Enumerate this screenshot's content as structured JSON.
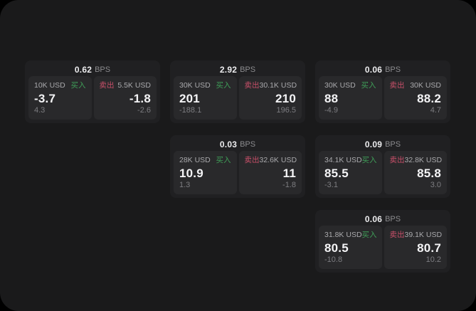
{
  "labels": {
    "bps_suffix": "BPS",
    "buy": "买入",
    "sell": "卖出"
  },
  "colors": {
    "page_bg": "#000000",
    "panel_bg": "#1a1a1b",
    "card_bg": "#202022",
    "tile_bg": "#29292b",
    "buy_green": "#3f9e58",
    "sell_red": "#c9506a"
  },
  "cards": [
    {
      "row": 1,
      "col": 1,
      "bps": "0.62",
      "buy": {
        "notional": "10K USD",
        "value": "-3.7",
        "sub": "4.3"
      },
      "sell": {
        "notional": "5.5K USD",
        "value": "-1.8",
        "sub": "-2.6"
      }
    },
    {
      "row": 1,
      "col": 2,
      "bps": "2.92",
      "buy": {
        "notional": "30K USD",
        "value": "201",
        "sub": "-188.1"
      },
      "sell": {
        "notional": "30.1K USD",
        "value": "210",
        "sub": "196.5"
      }
    },
    {
      "row": 1,
      "col": 3,
      "bps": "0.06",
      "buy": {
        "notional": "30K USD",
        "value": "88",
        "sub": "-4.9"
      },
      "sell": {
        "notional": "30K USD",
        "value": "88.2",
        "sub": "4.7"
      }
    },
    {
      "row": 2,
      "col": 2,
      "bps": "0.03",
      "buy": {
        "notional": "28K USD",
        "value": "10.9",
        "sub": "1.3"
      },
      "sell": {
        "notional": "32.6K USD",
        "value": "11",
        "sub": "-1.8"
      }
    },
    {
      "row": 2,
      "col": 3,
      "bps": "0.09",
      "buy": {
        "notional": "34.1K USD",
        "value": "85.5",
        "sub": "-3.1"
      },
      "sell": {
        "notional": "32.8K USD",
        "value": "85.8",
        "sub": "3.0"
      }
    },
    {
      "row": 3,
      "col": 3,
      "bps": "0.06",
      "buy": {
        "notional": "31.8K USD",
        "value": "80.5",
        "sub": "-10.8"
      },
      "sell": {
        "notional": "39.1K USD",
        "value": "80.7",
        "sub": "10.2"
      }
    }
  ]
}
